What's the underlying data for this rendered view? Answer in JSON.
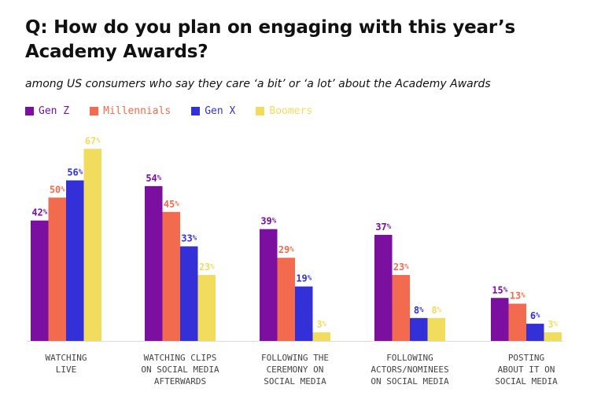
{
  "header": {
    "title": "Q: How do you plan on engaging with this year’s Academy Awards?",
    "subtitle": "among US consumers who say they care ‘a bit’ or ‘a lot’ about the Academy Awards"
  },
  "legend": {
    "items": [
      {
        "label": "Gen Z",
        "color": "#7b0fa0"
      },
      {
        "label": "Millennials",
        "color": "#f26b4e"
      },
      {
        "label": "Gen X",
        "color": "#3430d8"
      },
      {
        "label": "Boomers",
        "color": "#f2dc5d"
      }
    ]
  },
  "chart_data": {
    "type": "bar",
    "title": "Q: How do you plan on engaging with this year’s Academy Awards?",
    "subtitle": "among US consumers who say they care ‘a bit’ or ‘a lot’ about the Academy Awards",
    "categories": [
      [
        "WATCHING",
        "LIVE"
      ],
      [
        "WATCHING CLIPS",
        "ON SOCIAL MEDIA",
        "AFTERWARDS"
      ],
      [
        "FOLLOWING THE",
        "CEREMONY ON",
        "SOCIAL MEDIA"
      ],
      [
        "FOLLOWING",
        "ACTORS/NOMINEES",
        "ON SOCIAL MEDIA"
      ],
      [
        "POSTING",
        "ABOUT IT ON",
        "SOCIAL MEDIA"
      ]
    ],
    "series": [
      {
        "name": "Gen Z",
        "color": "#7b0fa0",
        "values": [
          42,
          54,
          39,
          37,
          15
        ]
      },
      {
        "name": "Millennials",
        "color": "#f26b4e",
        "values": [
          50,
          45,
          29,
          23,
          13
        ]
      },
      {
        "name": "Gen X",
        "color": "#3430d8",
        "values": [
          56,
          33,
          19,
          8,
          6
        ]
      },
      {
        "name": "Boomers",
        "color": "#f2dc5d",
        "values": [
          67,
          23,
          3,
          8,
          3
        ]
      }
    ],
    "value_suffix": "%",
    "ylim": [
      0,
      70
    ],
    "xlabel": "",
    "ylabel": "",
    "grid": false,
    "legend_position": "top-left"
  }
}
